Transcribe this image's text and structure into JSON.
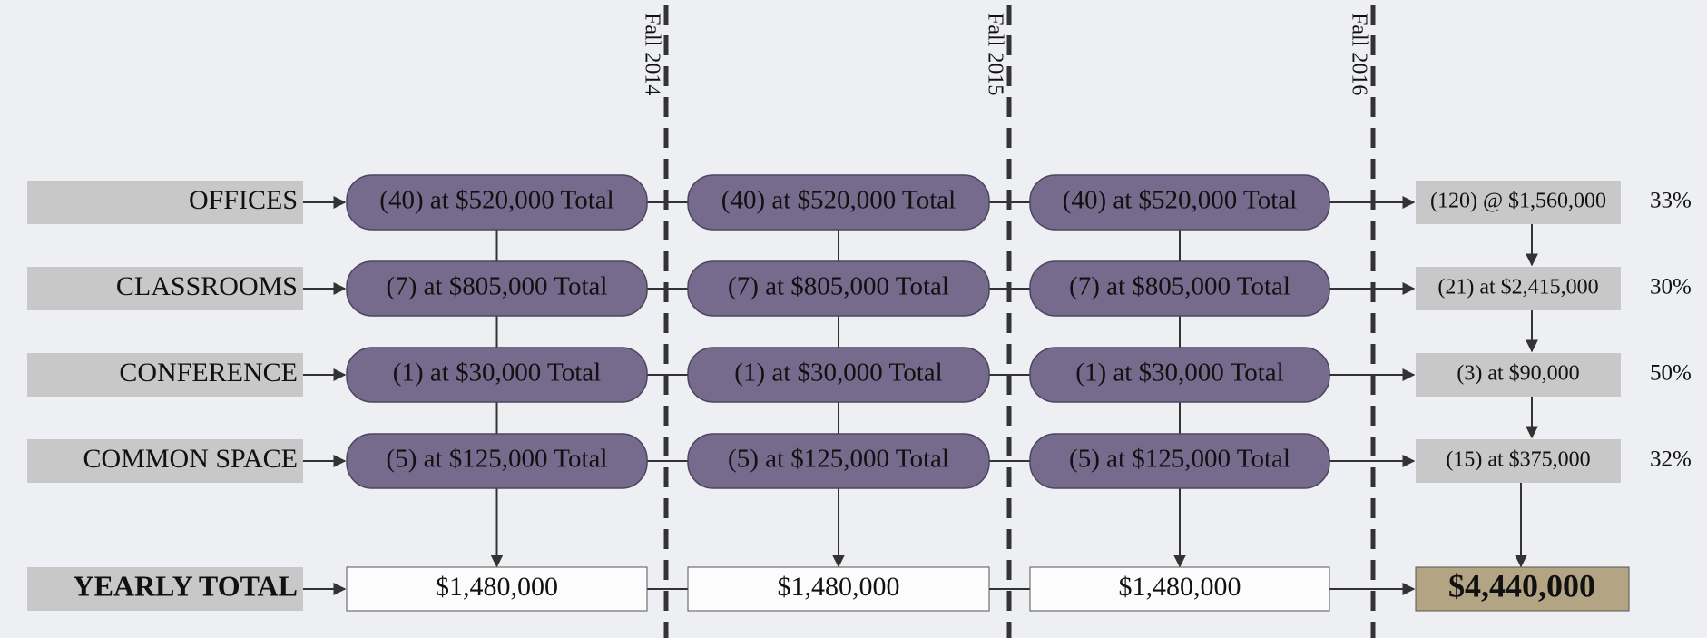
{
  "milestones": [
    "Fall 2014",
    "Fall 2015",
    "Fall 2016"
  ],
  "rows": [
    {
      "label": "OFFICES",
      "cells": [
        "(40) at $520,000 Total",
        "(40) at $520,000 Total",
        "(40) at $520,000 Total"
      ],
      "summary": "(120) @ $1,560,000",
      "percent": "33%"
    },
    {
      "label": "CLASSROOMS",
      "cells": [
        "(7) at $805,000 Total",
        "(7) at $805,000 Total",
        "(7) at $805,000 Total"
      ],
      "summary": "(21) at $2,415,000",
      "percent": "30%"
    },
    {
      "label": "CONFERENCE",
      "cells": [
        "(1) at $30,000 Total",
        "(1) at $30,000 Total",
        "(1) at $30,000 Total"
      ],
      "summary": "(3) at $90,000",
      "percent": "50%"
    },
    {
      "label": "COMMON SPACE",
      "cells": [
        "(5) at $125,000 Total",
        "(5) at $125,000 Total",
        "(5) at $125,000 Total"
      ],
      "summary": "(15) at $375,000",
      "percent": "32%"
    }
  ],
  "total": {
    "label": "YEARLY TOTAL",
    "cells": [
      "$1,480,000",
      "$1,480,000",
      "$1,480,000"
    ],
    "grand_total": "$4,440,000"
  }
}
